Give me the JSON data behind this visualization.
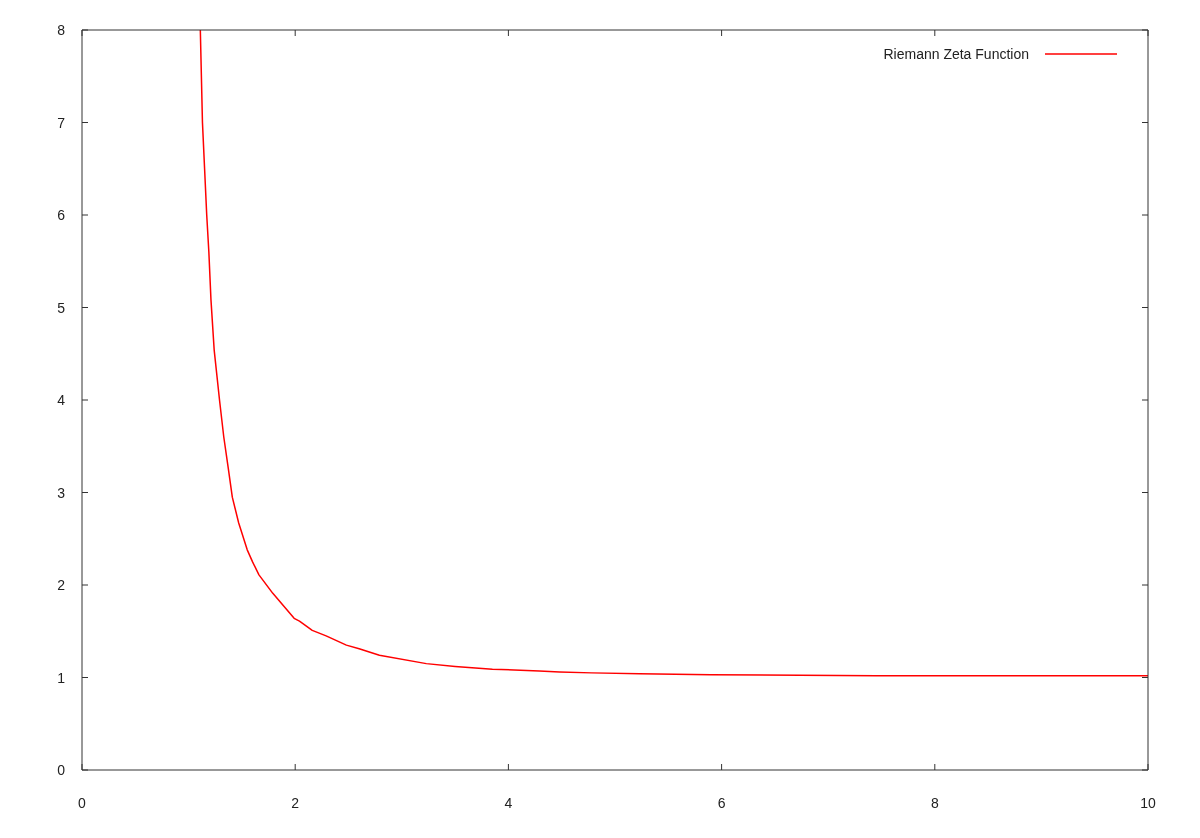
{
  "chart_data": {
    "type": "line",
    "x": [
      1.11,
      1.13,
      1.15,
      1.17,
      1.19,
      1.21,
      1.24,
      1.29,
      1.33,
      1.37,
      1.41,
      1.47,
      1.55,
      1.6,
      1.66,
      1.79,
      1.99,
      2.04,
      2.16,
      2.29,
      2.48,
      2.6,
      2.79,
      3.23,
      3.5,
      3.85,
      4.29,
      4.48,
      4.78,
      5.23,
      5.9,
      7.45,
      10
    ],
    "series": [
      {
        "name": "Riemann Zeta Function",
        "color": "#ff0000",
        "values": [
          8,
          7,
          6.5,
          6,
          5.6,
          5.08,
          4.54,
          4,
          3.6,
          3.28,
          2.95,
          2.67,
          2.38,
          2.25,
          2.11,
          1.91,
          1.64,
          1.61,
          1.51,
          1.45,
          1.35,
          1.31,
          1.24,
          1.15,
          1.12,
          1.09,
          1.07,
          1.06,
          1.05,
          1.04,
          1.03,
          1.02,
          1.02
        ]
      }
    ],
    "xlim": [
      0,
      10
    ],
    "xticks": [
      0,
      2,
      4,
      6,
      8,
      10
    ],
    "ylim": [
      0,
      8
    ],
    "yticks": [
      0,
      1,
      2,
      3,
      4,
      5,
      6,
      7,
      8
    ],
    "legend": "top right",
    "marker": "none",
    "line_style": "solid"
  }
}
